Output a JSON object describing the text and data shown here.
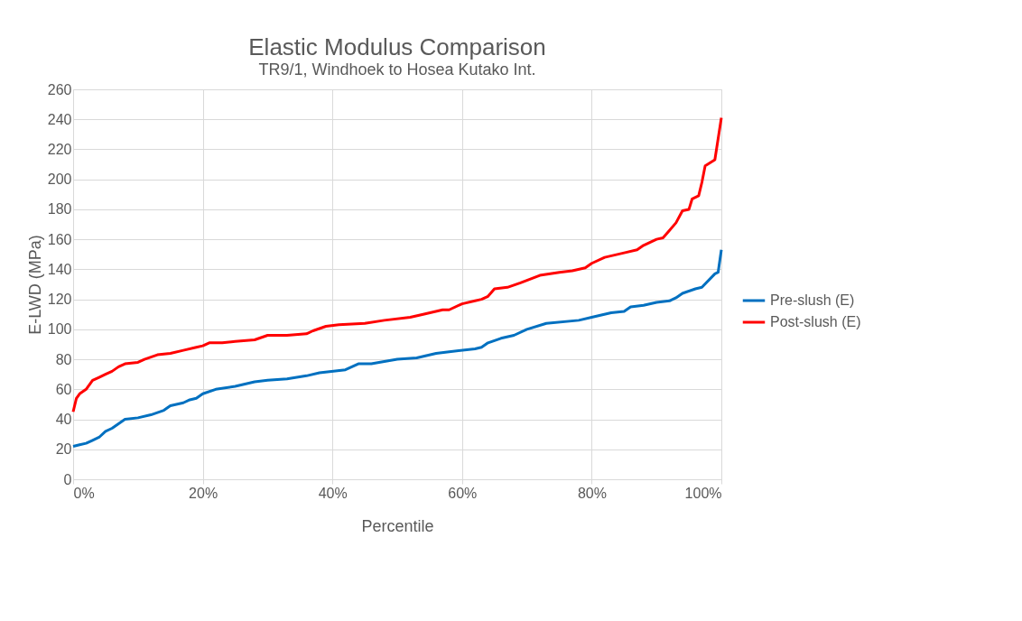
{
  "chart_data": {
    "type": "line",
    "title": "Elastic Modulus Comparison",
    "subtitle": "TR9/1, Windhoek to Hosea Kutako Int.",
    "xlabel": "Percentile",
    "ylabel": "E-LWD (MPa)",
    "xlim": [
      0,
      100
    ],
    "xticks": [
      {
        "value": 0,
        "label": "0%"
      },
      {
        "value": 20,
        "label": "20%"
      },
      {
        "value": 40,
        "label": "40%"
      },
      {
        "value": 60,
        "label": "60%"
      },
      {
        "value": 80,
        "label": "80%"
      },
      {
        "value": 100,
        "label": "100%"
      }
    ],
    "ylim": [
      0,
      260
    ],
    "yticks": [
      0,
      20,
      40,
      60,
      80,
      100,
      120,
      140,
      160,
      180,
      200,
      220,
      240,
      260
    ],
    "grid": true,
    "legend": "right",
    "marker": "none",
    "line_style": "solid",
    "series": [
      {
        "name": "Pre-slush (E)",
        "color": "#0070c0",
        "x": [
          0,
          1,
          2,
          3,
          4,
          5,
          6,
          7,
          8,
          10,
          12,
          14,
          15,
          17,
          18,
          19,
          20,
          22,
          25,
          28,
          30,
          33,
          36,
          38,
          42,
          44,
          46,
          50,
          53,
          56,
          58,
          62,
          63,
          64,
          66,
          68,
          70,
          73,
          78,
          80,
          83,
          85,
          86,
          88,
          90,
          92,
          93,
          94,
          96,
          97,
          99,
          99.5,
          100
        ],
        "values": [
          22,
          23,
          24,
          26,
          28,
          32,
          34,
          37,
          40,
          41,
          43,
          46,
          49,
          51,
          53,
          54,
          57,
          60,
          62,
          65,
          66,
          67,
          69,
          71,
          73,
          77,
          77,
          80,
          81,
          84,
          85,
          87,
          88,
          91,
          94,
          96,
          100,
          104,
          106,
          108,
          111,
          112,
          115,
          116,
          118,
          119,
          121,
          124,
          127,
          128,
          137,
          138,
          153
        ]
      },
      {
        "name": "Post-slush (E)",
        "color": "#ff0000",
        "x": [
          0,
          0.5,
          1,
          2,
          3,
          4,
          5,
          6,
          7,
          8,
          10,
          11,
          13,
          15,
          17,
          19,
          20,
          21,
          23,
          25,
          28,
          30,
          33,
          36,
          37,
          39,
          41,
          45,
          48,
          52,
          54,
          57,
          58,
          60,
          62,
          63,
          64,
          65,
          67,
          69,
          72,
          75,
          77,
          79,
          80,
          82,
          85,
          87,
          88,
          90,
          91,
          92,
          93,
          94,
          95,
          95.5,
          96.5,
          97,
          97.5,
          99,
          100
        ],
        "values": [
          45,
          54,
          57,
          60,
          66,
          68,
          70,
          72,
          75,
          77,
          78,
          80,
          83,
          84,
          86,
          88,
          89,
          91,
          91,
          92,
          93,
          96,
          96,
          97,
          99,
          102,
          103,
          104,
          106,
          108,
          110,
          113,
          113,
          117,
          119,
          120,
          122,
          127,
          128,
          131,
          136,
          138,
          139,
          141,
          144,
          148,
          151,
          153,
          156,
          160,
          161,
          166,
          171,
          179,
          180,
          187,
          189,
          198,
          209,
          213,
          241
        ]
      }
    ]
  }
}
